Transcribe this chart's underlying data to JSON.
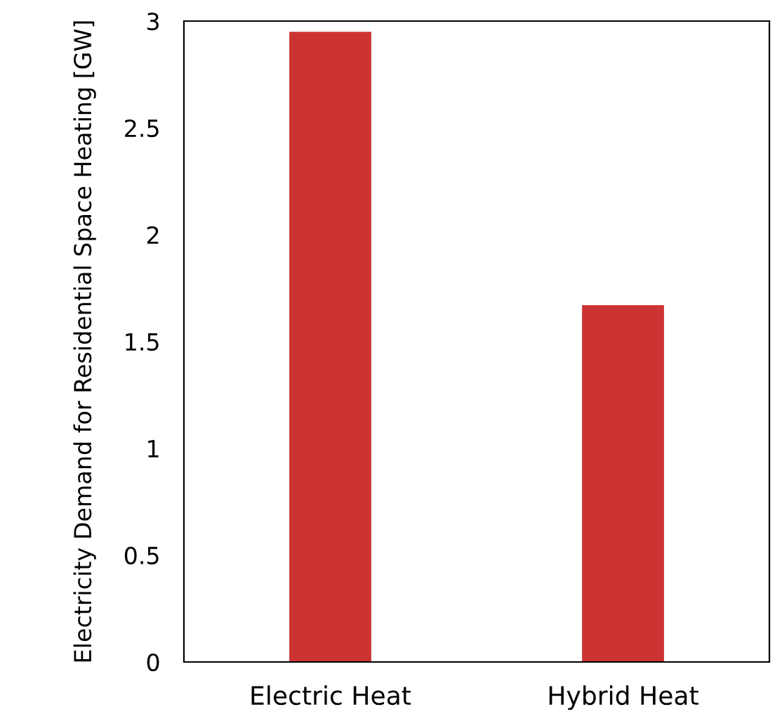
{
  "chart_data": {
    "type": "bar",
    "ylabel": "Electricity Demand for Residential Space Heating [GW]",
    "categories": [
      "Electric Heat",
      "Hybrid Heat"
    ],
    "values": [
      2.95,
      1.67
    ],
    "color": "#cc3333",
    "ylim": [
      0,
      3
    ],
    "yticks": [
      0,
      0.5,
      1,
      1.5,
      2,
      2.5,
      3
    ],
    "grid": false,
    "legend": false
  }
}
